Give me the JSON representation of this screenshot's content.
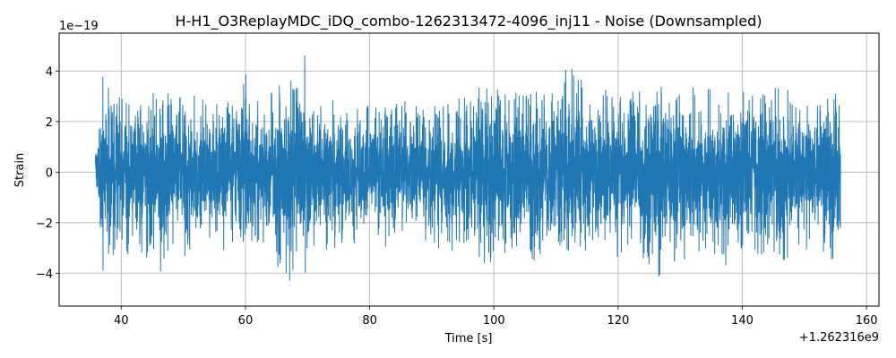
{
  "chart_data": {
    "type": "line",
    "title": "H-H1_O3ReplayMDC_iDQ_combo-1262313472-4096_inj11 - Noise (Downsampled)",
    "xlabel": "Time [s]",
    "ylabel": "Strain",
    "x_offset_label": "+1.262316e9",
    "y_exponent_label": "1e−19",
    "x_ticks": [
      40,
      60,
      80,
      100,
      120,
      140,
      160
    ],
    "x_tick_labels": [
      "40",
      "60",
      "80",
      "100",
      "120",
      "140",
      "160"
    ],
    "y_ticks": [
      -4,
      -2,
      0,
      2,
      4
    ],
    "y_tick_labels": [
      "−4",
      "−2",
      "0",
      "2",
      "4"
    ],
    "xlim": [
      30,
      162
    ],
    "ylim": [
      -5.3,
      5.5
    ],
    "grid": true,
    "series": [
      {
        "color": "#1f77b4",
        "x_start": 35.8,
        "x_end": 155.8,
        "envelope_description_values": {
          "upper": [
            [
              36.0,
              1.2
            ],
            [
              36.5,
              2.5
            ],
            [
              37.0,
              3.8
            ],
            [
              38.0,
              3.3
            ],
            [
              39.0,
              3.2
            ],
            [
              40.0,
              3.0
            ],
            [
              41.0,
              2.8
            ],
            [
              42.0,
              2.3
            ],
            [
              43.0,
              2.7
            ],
            [
              44.0,
              3.1
            ],
            [
              44.5,
              4.4
            ],
            [
              45.5,
              2.8
            ],
            [
              47.0,
              3.8
            ],
            [
              48.0,
              2.9
            ],
            [
              50.0,
              3.0
            ],
            [
              52.0,
              3.1
            ],
            [
              54.0,
              2.7
            ],
            [
              56.0,
              3.0
            ],
            [
              58.0,
              2.6
            ],
            [
              59.0,
              2.9
            ],
            [
              60.0,
              4.4
            ],
            [
              61.0,
              2.8
            ],
            [
              63.0,
              2.9
            ],
            [
              65.0,
              3.3
            ],
            [
              67.0,
              3.9
            ],
            [
              68.0,
              3.1
            ],
            [
              69.4,
              5.0
            ],
            [
              70.5,
              3.0
            ],
            [
              72.0,
              2.7
            ],
            [
              74.0,
              2.9
            ],
            [
              76.0,
              2.5
            ],
            [
              78.0,
              2.5
            ],
            [
              80.0,
              2.7
            ],
            [
              82.0,
              2.6
            ],
            [
              84.0,
              2.8
            ],
            [
              86.0,
              2.8
            ],
            [
              88.0,
              2.6
            ],
            [
              90.0,
              2.7
            ],
            [
              92.0,
              2.6
            ],
            [
              94.0,
              2.9
            ],
            [
              96.0,
              3.2
            ],
            [
              97.5,
              3.9
            ],
            [
              99.0,
              3.3
            ],
            [
              101.0,
              3.5
            ],
            [
              103.0,
              3.2
            ],
            [
              105.0,
              3.0
            ],
            [
              107.0,
              3.2
            ],
            [
              109.0,
              3.3
            ],
            [
              111.0,
              3.2
            ],
            [
              111.5,
              4.3
            ],
            [
              113.2,
              4.4
            ],
            [
              115.0,
              3.0
            ],
            [
              117.0,
              3.4
            ],
            [
              119.0,
              3.1
            ],
            [
              121.0,
              2.9
            ],
            [
              123.0,
              3.3
            ],
            [
              125.0,
              2.8
            ],
            [
              127.0,
              3.4
            ],
            [
              129.0,
              2.9
            ],
            [
              131.0,
              3.3
            ],
            [
              133.0,
              3.4
            ],
            [
              135.0,
              3.3
            ],
            [
              137.0,
              3.1
            ],
            [
              138.5,
              3.2
            ],
            [
              139.5,
              3.9
            ],
            [
              141.0,
              3.3
            ],
            [
              143.0,
              3.2
            ],
            [
              145.0,
              3.3
            ],
            [
              147.0,
              3.5
            ],
            [
              149.0,
              2.7
            ],
            [
              151.0,
              2.8
            ],
            [
              153.0,
              2.6
            ],
            [
              155.0,
              3.4
            ],
            [
              155.8,
              3.5
            ]
          ],
          "lower": [
            [
              36.0,
              -1.2
            ],
            [
              36.5,
              -2.3
            ],
            [
              37.0,
              -3.9
            ],
            [
              38.0,
              -3.8
            ],
            [
              39.0,
              -3.5
            ],
            [
              40.0,
              -2.9
            ],
            [
              41.0,
              -3.3
            ],
            [
              42.0,
              -2.6
            ],
            [
              43.0,
              -3.6
            ],
            [
              45.0,
              -3.2
            ],
            [
              46.5,
              -4.0
            ],
            [
              48.0,
              -3.0
            ],
            [
              50.0,
              -3.3
            ],
            [
              52.0,
              -3.5
            ],
            [
              54.0,
              -3.0
            ],
            [
              56.0,
              -3.3
            ],
            [
              58.0,
              -2.8
            ],
            [
              60.0,
              -2.9
            ],
            [
              62.0,
              -2.8
            ],
            [
              64.0,
              -3.1
            ],
            [
              65.0,
              -3.7
            ],
            [
              67.0,
              -4.5
            ],
            [
              68.5,
              -3.4
            ],
            [
              69.4,
              -4.7
            ],
            [
              71.0,
              -3.1
            ],
            [
              73.0,
              -3.2
            ],
            [
              75.0,
              -2.9
            ],
            [
              77.0,
              -2.9
            ],
            [
              79.0,
              -2.6
            ],
            [
              81.0,
              -2.8
            ],
            [
              83.0,
              -3.0
            ],
            [
              85.0,
              -2.6
            ],
            [
              87.0,
              -2.5
            ],
            [
              89.0,
              -2.7
            ],
            [
              91.0,
              -3.0
            ],
            [
              93.0,
              -3.2
            ],
            [
              95.0,
              -3.0
            ],
            [
              97.0,
              -3.5
            ],
            [
              99.0,
              -3.7
            ],
            [
              101.0,
              -3.4
            ],
            [
              103.0,
              -3.0
            ],
            [
              105.0,
              -3.2
            ],
            [
              107.0,
              -3.6
            ],
            [
              109.0,
              -3.5
            ],
            [
              111.0,
              -3.0
            ],
            [
              113.0,
              -3.2
            ],
            [
              115.0,
              -3.1
            ],
            [
              117.0,
              -3.8
            ],
            [
              119.0,
              -3.3
            ],
            [
              121.0,
              -3.5
            ],
            [
              122.5,
              -4.2
            ],
            [
              124.0,
              -3.4
            ],
            [
              125.5,
              -3.8
            ],
            [
              126.9,
              -4.4
            ],
            [
              128.0,
              -3.7
            ],
            [
              130.0,
              -3.4
            ],
            [
              132.0,
              -3.6
            ],
            [
              134.0,
              -3.0
            ],
            [
              136.0,
              -3.3
            ],
            [
              138.0,
              -3.9
            ],
            [
              140.0,
              -3.3
            ],
            [
              142.0,
              -3.2
            ],
            [
              144.0,
              -3.3
            ],
            [
              145.3,
              -4.6
            ],
            [
              147.0,
              -3.4
            ],
            [
              149.0,
              -3.3
            ],
            [
              151.0,
              -3.0
            ],
            [
              153.0,
              -3.2
            ],
            [
              154.5,
              -3.5
            ],
            [
              155.8,
              -2.2
            ]
          ]
        }
      }
    ]
  }
}
